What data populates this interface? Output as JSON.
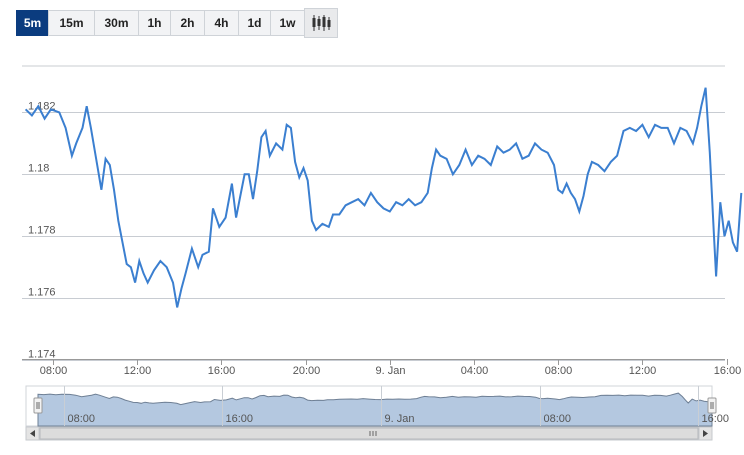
{
  "toolbar": {
    "timeframes": [
      "5m",
      "15m",
      "30m",
      "1h",
      "2h",
      "4h",
      "1d",
      "1w"
    ],
    "active": "5m",
    "chart_type_icon": "candlestick-icon"
  },
  "colors": {
    "line": "#3b7fd0",
    "grid": "#c8ccd2",
    "navigator_fill": "#b4c8e0",
    "navigator_line": "#6e7f94",
    "active_button": "#0b3c7f"
  },
  "chart_data": {
    "type": "line",
    "title": "",
    "xlabel": "",
    "ylabel": "",
    "ylim": [
      1.174,
      1.1835
    ],
    "yticks": [
      "1.174",
      "1.176",
      "1.178",
      "1.18",
      "1.182"
    ],
    "xticks": [
      "08:00",
      "12:00",
      "16:00",
      "20:00",
      "9. Jan",
      "04:00",
      "08:00",
      "12:00",
      "16:00"
    ],
    "x_hours": [
      0,
      4,
      8,
      12,
      16,
      20,
      24,
      28,
      32
    ],
    "series": [
      {
        "points": [
          [
            -1.3,
            1.1821
          ],
          [
            -1.0,
            1.1819
          ],
          [
            -0.7,
            1.1822
          ],
          [
            -0.4,
            1.1818
          ],
          [
            -0.1,
            1.1821
          ],
          [
            0.3,
            1.182
          ],
          [
            0.6,
            1.1815
          ],
          [
            0.9,
            1.1806
          ],
          [
            1.1,
            1.181
          ],
          [
            1.4,
            1.1815
          ],
          [
            1.6,
            1.1822
          ],
          [
            1.8,
            1.1815
          ],
          [
            2.1,
            1.1803
          ],
          [
            2.3,
            1.1795
          ],
          [
            2.5,
            1.1805
          ],
          [
            2.7,
            1.1803
          ],
          [
            2.9,
            1.1795
          ],
          [
            3.1,
            1.1785
          ],
          [
            3.3,
            1.1778
          ],
          [
            3.5,
            1.1771
          ],
          [
            3.7,
            1.177
          ],
          [
            3.9,
            1.1765
          ],
          [
            4.1,
            1.1772
          ],
          [
            4.3,
            1.1768
          ],
          [
            4.5,
            1.1765
          ],
          [
            4.8,
            1.1769
          ],
          [
            5.1,
            1.1772
          ],
          [
            5.4,
            1.177
          ],
          [
            5.7,
            1.1765
          ],
          [
            5.9,
            1.1757
          ],
          [
            6.1,
            1.1763
          ],
          [
            6.3,
            1.1768
          ],
          [
            6.6,
            1.1776
          ],
          [
            6.9,
            1.177
          ],
          [
            7.1,
            1.1774
          ],
          [
            7.4,
            1.1775
          ],
          [
            7.6,
            1.1789
          ],
          [
            7.9,
            1.1783
          ],
          [
            8.2,
            1.1786
          ],
          [
            8.5,
            1.1797
          ],
          [
            8.7,
            1.1786
          ],
          [
            8.9,
            1.1793
          ],
          [
            9.1,
            1.18
          ],
          [
            9.3,
            1.18
          ],
          [
            9.5,
            1.1792
          ],
          [
            9.7,
            1.1801
          ],
          [
            9.9,
            1.1812
          ],
          [
            10.1,
            1.1814
          ],
          [
            10.3,
            1.1806
          ],
          [
            10.6,
            1.181
          ],
          [
            10.9,
            1.1808
          ],
          [
            11.1,
            1.1816
          ],
          [
            11.3,
            1.1815
          ],
          [
            11.5,
            1.1804
          ],
          [
            11.7,
            1.1799
          ],
          [
            11.9,
            1.1802
          ],
          [
            12.1,
            1.1798
          ],
          [
            12.3,
            1.1785
          ],
          [
            12.5,
            1.1782
          ],
          [
            12.8,
            1.1784
          ],
          [
            13.1,
            1.1783
          ],
          [
            13.3,
            1.1787
          ],
          [
            13.6,
            1.1787
          ],
          [
            13.9,
            1.179
          ],
          [
            14.2,
            1.1791
          ],
          [
            14.5,
            1.1792
          ],
          [
            14.8,
            1.179
          ],
          [
            15.1,
            1.1794
          ],
          [
            15.4,
            1.1791
          ],
          [
            15.7,
            1.1789
          ],
          [
            16.0,
            1.1788
          ],
          [
            16.3,
            1.1791
          ],
          [
            16.6,
            1.179
          ],
          [
            16.9,
            1.1792
          ],
          [
            17.2,
            1.179
          ],
          [
            17.5,
            1.1791
          ],
          [
            17.8,
            1.1794
          ],
          [
            18.0,
            1.1802
          ],
          [
            18.2,
            1.1808
          ],
          [
            18.4,
            1.1806
          ],
          [
            18.7,
            1.1805
          ],
          [
            19.0,
            1.18
          ],
          [
            19.3,
            1.1803
          ],
          [
            19.6,
            1.1808
          ],
          [
            19.9,
            1.1803
          ],
          [
            20.2,
            1.1806
          ],
          [
            20.5,
            1.1805
          ],
          [
            20.8,
            1.1803
          ],
          [
            21.1,
            1.1809
          ],
          [
            21.4,
            1.1807
          ],
          [
            21.7,
            1.1808
          ],
          [
            22.0,
            1.181
          ],
          [
            22.3,
            1.1805
          ],
          [
            22.6,
            1.1806
          ],
          [
            22.9,
            1.181
          ],
          [
            23.2,
            1.1808
          ],
          [
            23.5,
            1.1807
          ],
          [
            23.8,
            1.1803
          ],
          [
            24.0,
            1.1795
          ],
          [
            24.2,
            1.1794
          ],
          [
            24.4,
            1.1797
          ],
          [
            24.6,
            1.1794
          ],
          [
            24.8,
            1.1792
          ],
          [
            25.0,
            1.1788
          ],
          [
            25.2,
            1.1793
          ],
          [
            25.4,
            1.18
          ],
          [
            25.6,
            1.1804
          ],
          [
            25.9,
            1.1803
          ],
          [
            26.2,
            1.1801
          ],
          [
            26.5,
            1.1804
          ],
          [
            26.8,
            1.1806
          ],
          [
            27.1,
            1.1814
          ],
          [
            27.4,
            1.1815
          ],
          [
            27.7,
            1.1814
          ],
          [
            28.0,
            1.1816
          ],
          [
            28.3,
            1.1812
          ],
          [
            28.6,
            1.1816
          ],
          [
            28.9,
            1.1815
          ],
          [
            29.2,
            1.1815
          ],
          [
            29.5,
            1.181
          ],
          [
            29.8,
            1.1815
          ],
          [
            30.1,
            1.1814
          ],
          [
            30.4,
            1.181
          ],
          [
            30.6,
            1.1815
          ],
          [
            30.8,
            1.1822
          ],
          [
            31.0,
            1.1828
          ],
          [
            31.2,
            1.1807
          ],
          [
            31.4,
            1.178
          ],
          [
            31.5,
            1.1767
          ],
          [
            31.7,
            1.1791
          ],
          [
            31.9,
            1.178
          ],
          [
            32.1,
            1.1785
          ],
          [
            32.3,
            1.1778
          ],
          [
            32.5,
            1.1775
          ],
          [
            32.7,
            1.1794
          ]
        ]
      }
    ],
    "navigator": {
      "xticks": [
        "08:00",
        "16:00",
        "9. Jan",
        "08:00",
        "16:00"
      ]
    }
  }
}
